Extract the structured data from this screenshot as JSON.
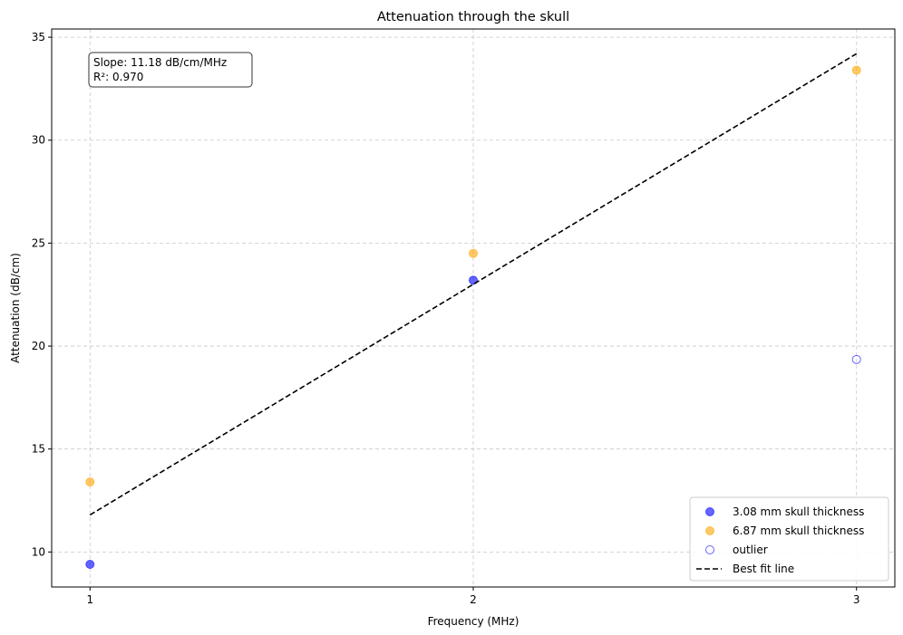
{
  "chart_data": {
    "type": "scatter",
    "title": "Attenuation through the skull",
    "xlabel": "Frequency (MHz)",
    "ylabel": "Attenuation (dB/cm)",
    "xlim": [
      0.9,
      3.1
    ],
    "ylim": [
      8.3,
      35.4
    ],
    "xticks": [
      1,
      2,
      3
    ],
    "yticks": [
      10,
      15,
      20,
      25,
      30,
      35
    ],
    "grid": true,
    "legend_position": "bottom-right",
    "series": [
      {
        "name": "3.08 mm skull thickness",
        "kind": "scatter",
        "color": "#0000ff",
        "filled": true,
        "points": [
          {
            "x": 1,
            "y": 9.4
          },
          {
            "x": 2,
            "y": 23.2
          }
        ]
      },
      {
        "name": "6.87 mm skull thickness",
        "kind": "scatter",
        "color": "#ffa500",
        "filled": true,
        "points": [
          {
            "x": 1,
            "y": 13.4
          },
          {
            "x": 2,
            "y": 24.5
          },
          {
            "x": 3,
            "y": 33.4
          }
        ]
      },
      {
        "name": "outlier",
        "kind": "scatter",
        "color": "#0000ff",
        "filled": false,
        "points": [
          {
            "x": 3,
            "y": 19.35
          }
        ]
      },
      {
        "name": "Best fit line",
        "kind": "line",
        "color": "#000000",
        "dashed": true,
        "points": [
          {
            "x": 1,
            "y": 11.8
          },
          {
            "x": 3,
            "y": 34.2
          }
        ]
      }
    ],
    "annotation": {
      "line1": "Slope: 11.18 dB/cm/MHz",
      "line2": "R²: 0.970"
    }
  }
}
